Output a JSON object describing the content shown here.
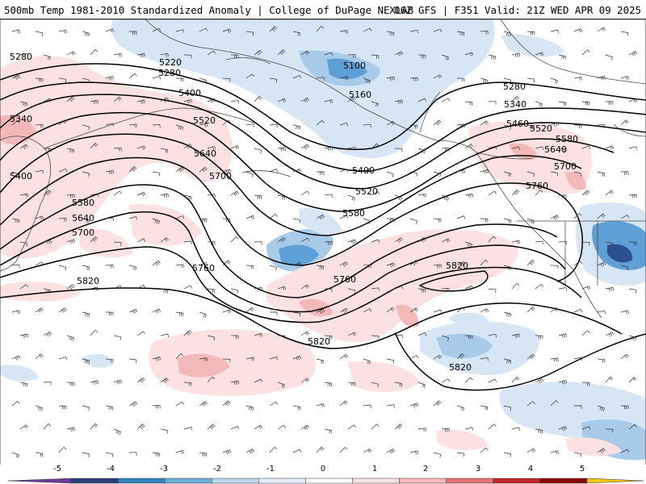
{
  "header": {
    "title_left": "500mb Temp 1981-2010 Standardized Anomaly | College of DuPage NEXLAB",
    "title_right": "06Z GFS | F351 Valid: 21Z WED APR 09 2025"
  },
  "contour_labels": [
    "5280",
    "5220",
    "5280",
    "5100",
    "5160",
    "5280",
    "5340",
    "5400",
    "5340",
    "5520",
    "5460",
    "5520",
    "5580",
    "5640",
    "5700",
    "5760",
    "5400",
    "5640",
    "5700",
    "5400",
    "5520",
    "5580",
    "5580",
    "5640",
    "5700",
    "5760",
    "5820",
    "5820",
    "5760",
    "5820",
    "5820"
  ],
  "colorbar": {
    "ticks": [
      "-5",
      "-4",
      "-3",
      "-2",
      "-1",
      "0",
      "1",
      "2",
      "3",
      "4",
      "5"
    ],
    "colors": [
      "#6a3d9a",
      "#2c3e7a",
      "#3182bd",
      "#6baed6",
      "#bdd7ee",
      "#e3eef8",
      "#ffffff",
      "#fbe3e3",
      "#f4b6b6",
      "#e57373",
      "#c62828",
      "#8b0000",
      "#f5c518"
    ]
  },
  "anomaly_colors": {
    "negative_light": "#d7e6f5",
    "negative_mid": "#a9cbea",
    "negative_strong": "#5e9fd6",
    "negative_core": "#2c4f8f",
    "positive_light": "#fbe1e1",
    "positive_mid": "#f3b9b9"
  }
}
